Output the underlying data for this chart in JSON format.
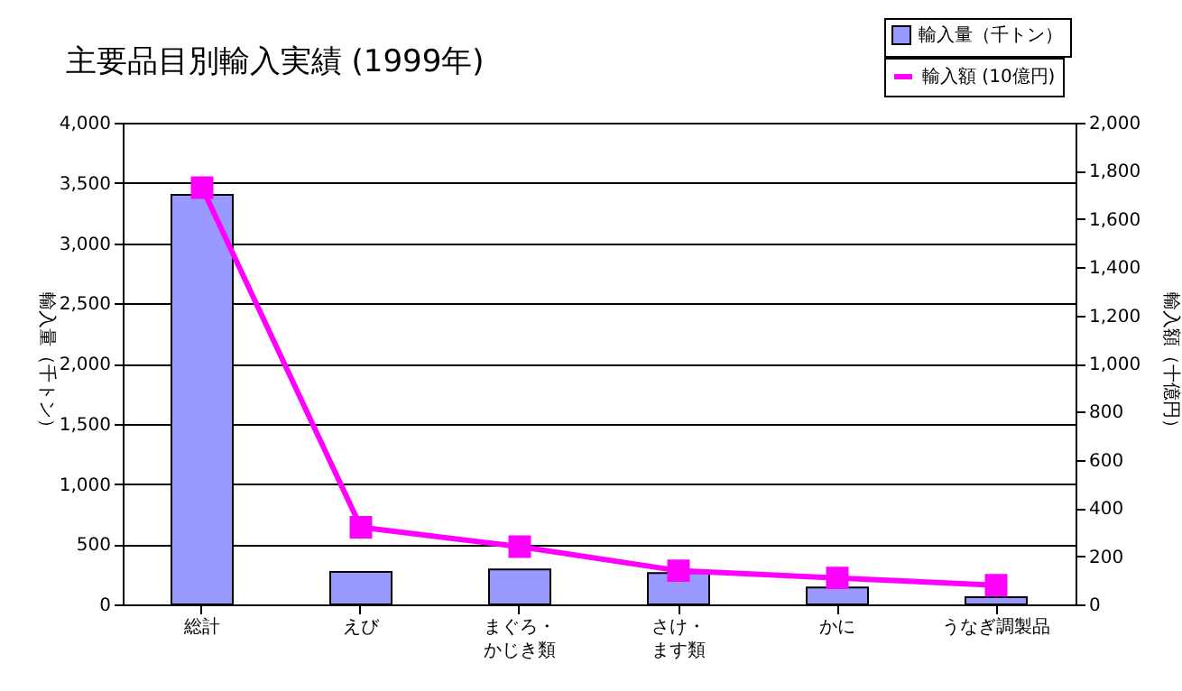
{
  "chart_data": {
    "type": "bar",
    "title": "主要品目別輸入実績 (1999年)",
    "categories": [
      "総計",
      "えび",
      "まぐろ・かじき類",
      "さけ・ます類",
      "かに",
      "うなぎ調製品"
    ],
    "series": [
      {
        "name": "輸入量（千トン）",
        "color": "#9999ff",
        "values": [
          3400,
          270,
          290,
          260,
          140,
          60
        ]
      },
      {
        "name": "輸入額 (10億円)",
        "type": "line",
        "axis": "y2",
        "color": "#ff00ff",
        "values": [
          1730,
          320,
          240,
          140,
          110,
          80
        ]
      }
    ],
    "ylabel": "輸入量（千トン）",
    "y2label": "輸入額（十億円）",
    "ylim": [
      0,
      4000
    ],
    "yticks": [
      0,
      500,
      {
        "value": 1000,
        "label": "1,000"
      },
      {
        "value": 1500,
        "label": "1,500"
      },
      {
        "value": 2000,
        "label": "2,000"
      },
      {
        "value": 2500,
        "label": "2,500"
      },
      {
        "value": 3000,
        "label": "3,000"
      },
      {
        "value": 3500,
        "label": "3,500"
      },
      {
        "value": 4000,
        "label": "4,000"
      }
    ],
    "y2lim": [
      0,
      2000
    ],
    "y2ticks": [
      0,
      200,
      400,
      600,
      800,
      {
        "value": 1000,
        "label": "1,000"
      },
      {
        "value": 1200,
        "label": "1,200"
      },
      {
        "value": 1400,
        "label": "1,400"
      },
      {
        "value": 1600,
        "label": "1,600"
      },
      {
        "value": 1800,
        "label": "1,800"
      },
      {
        "value": 2000,
        "label": "2,000"
      }
    ],
    "grid": "y",
    "legend": "top right",
    "marker": "square"
  }
}
